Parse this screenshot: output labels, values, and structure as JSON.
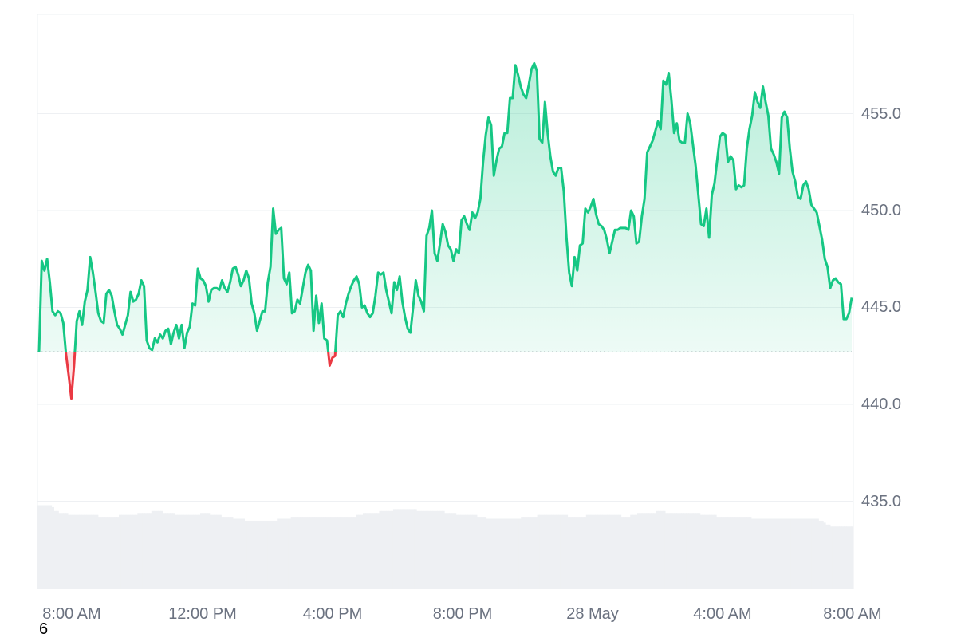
{
  "page_number": "6",
  "colors": {
    "up": "#16c784",
    "down": "#ea3943",
    "volume": "#eef0f3",
    "grid": "#eef0f3",
    "baseline": "#6b7280",
    "axis_text": "#6b7280"
  },
  "chart_data": {
    "type": "area",
    "title": "",
    "xlabel": "",
    "ylabel": "",
    "ylim": [
      430.5,
      459.5
    ],
    "y_ticks": [
      "455.0",
      "450.0",
      "445.0",
      "440.0",
      "435.0"
    ],
    "x_tick_labels": [
      "8:00 AM",
      "12:00 PM",
      "4:00 PM",
      "8:00 PM",
      "28 May",
      "4:00 AM",
      "8:00 AM"
    ],
    "baseline": 442.7,
    "grid": true,
    "y_axis_position": "right",
    "series": [
      {
        "values": [
          442.7,
          447.4,
          446.9,
          447.5,
          446.3,
          444.8,
          444.6,
          444.8,
          444.7,
          444.2,
          442.6,
          441.5,
          440.3,
          442.0,
          444.3,
          444.8,
          444.1,
          445.3,
          445.9,
          447.6,
          446.8,
          445.8,
          444.7,
          444.3,
          444.2,
          445.7,
          445.9,
          445.6,
          444.8,
          444.1,
          443.9,
          443.6,
          444.1,
          444.6,
          445.8,
          445.3,
          445.4,
          445.7,
          446.4,
          446.1,
          443.3,
          442.9,
          442.8,
          443.4,
          443.2,
          443.6,
          443.4,
          443.8,
          443.9,
          443.1,
          443.7,
          444.1,
          443.4,
          444.1,
          442.9,
          443.7,
          444.0,
          445.2,
          445.1,
          447.0,
          446.5,
          446.4,
          446.1,
          445.3,
          445.9,
          446.0,
          446.0,
          445.9,
          446.4,
          446.0,
          445.8,
          446.3,
          447.0,
          447.1,
          446.7,
          446.1,
          446.4,
          446.9,
          446.5,
          445.2,
          444.7,
          443.8,
          444.3,
          444.8,
          444.8,
          446.3,
          447.1,
          450.1,
          448.8,
          449.0,
          449.1,
          446.5,
          446.2,
          446.8,
          444.7,
          444.8,
          445.4,
          445.2,
          446.0,
          446.8,
          447.2,
          446.9,
          443.8,
          445.6,
          444.2,
          445.2,
          443.4,
          443.3,
          442.0,
          442.4,
          442.5,
          444.6,
          444.8,
          444.5,
          445.2,
          445.7,
          446.1,
          446.4,
          446.6,
          446.2,
          445.0,
          445.1,
          444.7,
          444.5,
          444.7,
          445.6,
          446.8,
          446.7,
          446.8,
          445.9,
          445.3,
          444.7,
          446.3,
          445.9,
          446.6,
          445.3,
          444.5,
          443.9,
          443.7,
          445.0,
          446.4,
          445.6,
          445.3,
          444.8,
          448.7,
          449.1,
          450.0,
          447.8,
          447.4,
          448.3,
          449.3,
          448.9,
          448.2,
          448.0,
          447.4,
          448.0,
          447.8,
          449.5,
          449.7,
          449.3,
          449.0,
          449.9,
          449.6,
          449.9,
          450.6,
          452.5,
          453.9,
          454.8,
          454.4,
          451.8,
          452.6,
          453.2,
          453.3,
          454.0,
          454.0,
          455.8,
          455.8,
          457.5,
          457.0,
          456.4,
          456.0,
          455.8,
          456.5,
          457.3,
          457.6,
          457.2,
          453.7,
          453.5,
          455.6,
          454.0,
          452.8,
          452.0,
          451.8,
          452.2,
          452.2,
          451.0,
          448.6,
          446.8,
          446.1,
          447.6,
          446.9,
          448.2,
          448.3,
          450.1,
          449.9,
          450.2,
          450.6,
          449.8,
          449.3,
          449.2,
          449.0,
          448.5,
          447.8,
          448.4,
          449.0,
          449.0,
          449.1,
          449.1,
          449.1,
          449.0,
          450.0,
          449.7,
          448.3,
          448.4,
          449.7,
          450.6,
          453.0,
          453.3,
          453.6,
          454.1,
          454.6,
          454.2,
          456.7,
          456.5,
          457.1,
          455.7,
          454.0,
          454.5,
          453.6,
          453.5,
          453.5,
          455.0,
          454.5,
          453.4,
          452.3,
          450.8,
          449.3,
          449.2,
          450.1,
          448.6,
          450.8,
          451.4,
          452.6,
          453.8,
          454.0,
          453.9,
          452.5,
          452.8,
          452.6,
          451.1,
          451.3,
          451.2,
          451.3,
          453.2,
          454.2,
          454.9,
          456.1,
          455.6,
          455.3,
          456.4,
          455.6,
          454.9,
          453.2,
          452.9,
          452.5,
          451.9,
          454.8,
          455.1,
          454.8,
          453.2,
          452.0,
          451.5,
          450.7,
          450.6,
          451.3,
          451.5,
          451.1,
          450.3,
          450.1,
          449.9,
          449.2,
          448.5,
          447.5,
          447.1,
          446.0,
          446.4,
          446.5,
          446.3,
          446.2,
          444.4,
          444.4,
          444.7,
          445.5
        ]
      }
    ],
    "volume": {
      "values": [
        4.3,
        4.3,
        4.3,
        4.3,
        4.3,
        4.3,
        4.2,
        4.0,
        4.0,
        3.9,
        3.9,
        3.9,
        3.9,
        3.8,
        3.8,
        3.8,
        3.8,
        3.8,
        3.8,
        3.8,
        3.8,
        3.8,
        3.8,
        3.8,
        3.8,
        3.8,
        3.7,
        3.7,
        3.7,
        3.7,
        3.7,
        3.7,
        3.7,
        3.7,
        3.7,
        3.8,
        3.8,
        3.8,
        3.8,
        3.8,
        3.8,
        3.8,
        3.8,
        3.9,
        3.9,
        3.9,
        3.9,
        3.9,
        3.9,
        4.0,
        4.0,
        4.0,
        4.0,
        4.0,
        3.9,
        3.9,
        3.9,
        3.9,
        3.9,
        3.8,
        3.8,
        3.8,
        3.8,
        3.8,
        3.8,
        3.8,
        3.8,
        3.8,
        3.8,
        3.8,
        3.9,
        3.9,
        3.9,
        3.9,
        3.8,
        3.8,
        3.8,
        3.8,
        3.8,
        3.7,
        3.7,
        3.7,
        3.7,
        3.7,
        3.6,
        3.6,
        3.6,
        3.6,
        3.6,
        3.5,
        3.5,
        3.5,
        3.5,
        3.5,
        3.5,
        3.5,
        3.5,
        3.5,
        3.5,
        3.5,
        3.5,
        3.5,
        3.5,
        3.6,
        3.6,
        3.6,
        3.6,
        3.6,
        3.6,
        3.7,
        3.7,
        3.7,
        3.7,
        3.7,
        3.7,
        3.7,
        3.7,
        3.7,
        3.7,
        3.7,
        3.7,
        3.7,
        3.7,
        3.7,
        3.7,
        3.7,
        3.7,
        3.7,
        3.7,
        3.7,
        3.7,
        3.7,
        3.7,
        3.7,
        3.7,
        3.7,
        3.7,
        3.8,
        3.8,
        3.8,
        3.9,
        3.9,
        3.9,
        3.9,
        3.9,
        3.9,
        3.9,
        4.0,
        4.0,
        4.0,
        4.0,
        4.0,
        4.0,
        4.1,
        4.1,
        4.1,
        4.1,
        4.1,
        4.1,
        4.1,
        4.1,
        4.1,
        4.1,
        4.0,
        4.0,
        4.0,
        4.0,
        4.0,
        4.0,
        4.0,
        4.0,
        4.0,
        4.0,
        4.0,
        4.0,
        3.9,
        3.9,
        3.9,
        3.9,
        3.9,
        3.8,
        3.8,
        3.8,
        3.8,
        3.8,
        3.8,
        3.8,
        3.8,
        3.8,
        3.7,
        3.7,
        3.7,
        3.7,
        3.6,
        3.6,
        3.6,
        3.6,
        3.6,
        3.6,
        3.6,
        3.6,
        3.6,
        3.6,
        3.6,
        3.6,
        3.6,
        3.6,
        3.6,
        3.7,
        3.7,
        3.7,
        3.7,
        3.7,
        3.7,
        3.7,
        3.8,
        3.8,
        3.8,
        3.8,
        3.8,
        3.8,
        3.8,
        3.8,
        3.8,
        3.8,
        3.8,
        3.8,
        3.8,
        3.7,
        3.7,
        3.7,
        3.7,
        3.7,
        3.7,
        3.7,
        3.7,
        3.8,
        3.8,
        3.8,
        3.8,
        3.8,
        3.8,
        3.8,
        3.8,
        3.8,
        3.8,
        3.8,
        3.8,
        3.8,
        3.8,
        3.8,
        3.7,
        3.7,
        3.7,
        3.7,
        3.8,
        3.8,
        3.8,
        3.9,
        3.9,
        3.9,
        3.9,
        3.9,
        3.9,
        3.9,
        3.9,
        4.0,
        4.0,
        4.0,
        4.0,
        3.9,
        3.9,
        3.9,
        3.9,
        3.9,
        3.9,
        3.9,
        3.9,
        3.9,
        3.9,
        3.9,
        3.9,
        3.9,
        3.9,
        3.9,
        3.8,
        3.8,
        3.8,
        3.8,
        3.8,
        3.8,
        3.8,
        3.7,
        3.7,
        3.7,
        3.7,
        3.7,
        3.7,
        3.7,
        3.7,
        3.7,
        3.7,
        3.7,
        3.7,
        3.7,
        3.7,
        3.7,
        3.6,
        3.6,
        3.6,
        3.6,
        3.6,
        3.6,
        3.6,
        3.6,
        3.6,
        3.6,
        3.6,
        3.6,
        3.6,
        3.6,
        3.6,
        3.6,
        3.6,
        3.6,
        3.6,
        3.6,
        3.6,
        3.6,
        3.6,
        3.6,
        3.6,
        3.6,
        3.6,
        3.6,
        3.6,
        3.5,
        3.5,
        3.4,
        3.3,
        3.3,
        3.2,
        3.2,
        3.2,
        3.2,
        3.2,
        3.2,
        3.2,
        3.2,
        3.2,
        3.2
      ]
    }
  }
}
